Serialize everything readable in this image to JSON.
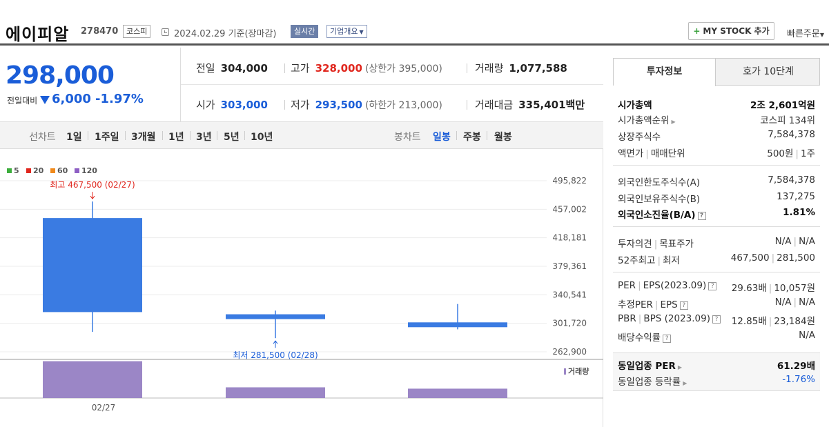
{
  "header": {
    "stock_name": "에이피알",
    "stock_code": "278470",
    "market_badge": "코스피",
    "date_text": "2024.02.29 기준(장마감)",
    "realtime_badge": "실시간",
    "company_badge": "기업개요",
    "my_stock_label": "MY STOCK 추가",
    "quick_order_label": "빠른주문"
  },
  "price": {
    "current": "298,000",
    "change_label": "전일대비",
    "change_value": "6,000",
    "change_rate": "-1.97%"
  },
  "stats": {
    "prev_close": {
      "label": "전일",
      "value": "304,000"
    },
    "high": {
      "label": "고가",
      "value": "328,000",
      "sub": "(상한가 395,000)"
    },
    "volume": {
      "label": "거래량",
      "value": "1,077,588"
    },
    "open": {
      "label": "시가",
      "value": "303,000"
    },
    "low": {
      "label": "저가",
      "value": "293,500",
      "sub": "(하한가 213,000)"
    },
    "amount": {
      "label": "거래대금",
      "value": "335,401",
      "unit": "백만"
    }
  },
  "period_bar": {
    "line_label": "선차트",
    "line_items": [
      "1일",
      "1주일",
      "3개월",
      "1년",
      "3년",
      "5년",
      "10년"
    ],
    "candle_label": "봉차트",
    "candle_items": [
      "일봉",
      "주봉",
      "월봉"
    ],
    "candle_active": "일봉"
  },
  "chart_data": {
    "type": "candlestick",
    "legend": [
      {
        "name": "5",
        "color": "#3dae3d"
      },
      {
        "name": "20",
        "color": "#e0261d"
      },
      {
        "name": "60",
        "color": "#f08a1c"
      },
      {
        "name": "120",
        "color": "#8e5fc4"
      }
    ],
    "y_ticks": [
      "495,822",
      "457,002",
      "418,181",
      "379,361",
      "340,541",
      "301,720",
      "262,900"
    ],
    "ylim": [
      262900,
      495822
    ],
    "candles": [
      {
        "date": "02/27",
        "open": 445000,
        "close": 317000,
        "high": 467500,
        "low": 290000
      },
      {
        "date": "02/28",
        "open": 314000,
        "close": 308000,
        "high": 319000,
        "low": 281500
      },
      {
        "date": "02/29",
        "open": 303000,
        "close": 298000,
        "high": 328000,
        "low": 293500
      }
    ],
    "volume_max": 1700000,
    "volumes": [
      1650000,
      480000,
      420000
    ],
    "x_labels": [
      {
        "index": 0,
        "label": "02/27"
      }
    ],
    "max_annotation": "최고 467,500 (02/27)",
    "min_annotation": "최저 281,500 (02/28)",
    "volume_label": "거래량",
    "candle_color": "#3a7be2",
    "volume_color": "#9b86c6"
  },
  "right_panel": {
    "tabs": [
      "투자정보",
      "호가 10단계"
    ],
    "rows": [
      {
        "label": "시가총액",
        "value": "2조 2,601억원"
      },
      {
        "label": "시가총액순위",
        "value": "코스피 134위"
      },
      {
        "label": "상장주식수",
        "value": "7,584,378"
      },
      {
        "label_a": "액면가",
        "label_b": "매매단위",
        "value_a": "500원",
        "value_b": "1주"
      },
      {
        "label": "외국인한도주식수(A)",
        "value": "7,584,378"
      },
      {
        "label": "외국인보유주식수(B)",
        "value": "137,275"
      },
      {
        "label": "외국인소진율(B/A)",
        "value": "1.81%"
      },
      {
        "label_a": "투자의견",
        "label_b": "목표주가",
        "value_a": "N/A",
        "value_b": "N/A"
      },
      {
        "label_a": "52주최고",
        "label_b": "최저",
        "value_a": "467,500",
        "value_b": "281,500"
      },
      {
        "label_a": "PER",
        "label_b": "EPS(2023.09)",
        "value_a": "29.63배",
        "value_b": "10,057원"
      },
      {
        "label_a": "추정PER",
        "label_b": "EPS",
        "value_a": "N/A",
        "value_b": "N/A"
      },
      {
        "label_a": "PBR",
        "label_b": "BPS (2023.09)",
        "value_a": "12.85배",
        "value_b": "23,184원"
      },
      {
        "label": "배당수익률",
        "value": "N/A"
      },
      {
        "label": "동일업종 PER",
        "value": "61.29배"
      },
      {
        "label": "동일업종 등락률",
        "value": "-1.76%"
      }
    ]
  }
}
